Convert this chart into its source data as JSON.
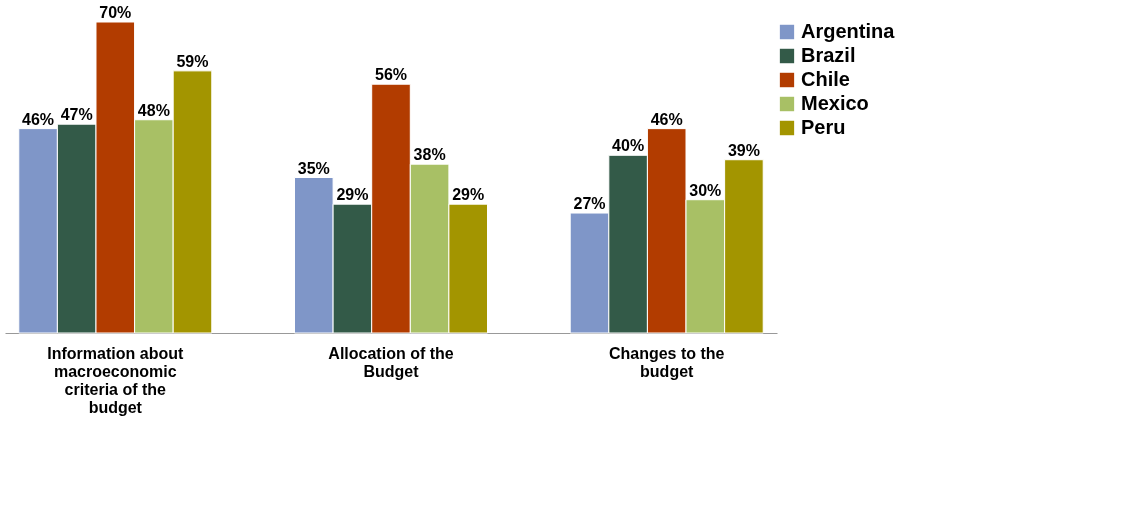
{
  "chart_data": {
    "type": "bar",
    "categories": [
      "Information about macroeconomic criteria of the budget",
      "Allocation of the Budget",
      "Changes to the budget"
    ],
    "series": [
      {
        "name": "Argentina",
        "color": "#7f96c8",
        "values": [
          46,
          35,
          27
        ],
        "value_labels": [
          "46%",
          "35%",
          "27%"
        ]
      },
      {
        "name": "Brazil",
        "color": "#335a48",
        "values": [
          47,
          29,
          40
        ],
        "value_labels": [
          "47%",
          "29%",
          "40%"
        ]
      },
      {
        "name": "Chile",
        "color": "#b23c00",
        "values": [
          70,
          56,
          46
        ],
        "value_labels": [
          "70%",
          "56%",
          "46%"
        ]
      },
      {
        "name": "Mexico",
        "color": "#a8c065",
        "values": [
          48,
          38,
          30
        ],
        "value_labels": [
          "48%",
          "38%",
          "30%"
        ]
      },
      {
        "name": "Peru",
        "color": "#a39500",
        "values": [
          59,
          29,
          39
        ],
        "value_labels": [
          "59%",
          "29%",
          "39%"
        ]
      }
    ],
    "legend": "top right",
    "grid": false
  }
}
